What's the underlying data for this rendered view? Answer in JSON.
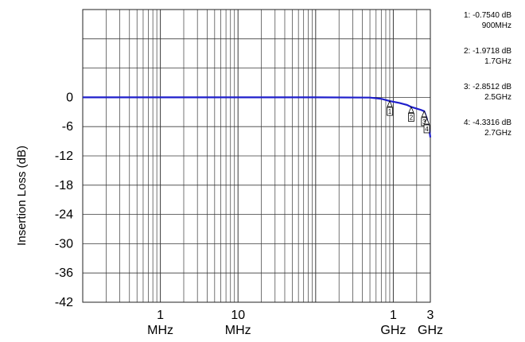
{
  "chart_data": {
    "type": "line",
    "title": "",
    "xlabel": "",
    "ylabel": "Insertion Loss (dB)",
    "xscale": "log",
    "xlim_hz": [
      100000,
      3000000000
    ],
    "ylim": [
      -42,
      18
    ],
    "grid": true,
    "line_color": "#1f1fcc",
    "y_ticks": [
      {
        "value": 0,
        "label": "0"
      },
      {
        "value": -6,
        "label": "-6"
      },
      {
        "value": -12,
        "label": "-12"
      },
      {
        "value": -18,
        "label": "-18"
      },
      {
        "value": -24,
        "label": "-24"
      },
      {
        "value": -30,
        "label": "-30"
      },
      {
        "value": -36,
        "label": "-36"
      },
      {
        "value": -42,
        "label": "-42"
      }
    ],
    "x_ticks": [
      {
        "value_hz": 1000000,
        "value_label": "1",
        "unit_label": "MHz"
      },
      {
        "value_hz": 10000000,
        "value_label": "10",
        "unit_label": "MHz"
      },
      {
        "value_hz": 1000000000,
        "value_label": "1",
        "unit_label": "GHz"
      },
      {
        "value_hz": 3000000000,
        "value_label": "3",
        "unit_label": "GHz"
      }
    ],
    "series": [
      {
        "x_hz": [
          100000,
          1000000,
          10000000,
          100000000,
          500000000,
          700000000,
          900000000,
          1200000000,
          1500000000,
          1700000000,
          2000000000,
          2300000000,
          2500000000,
          2700000000,
          2900000000,
          3000000000
        ],
        "y": [
          0,
          0,
          0,
          0,
          -0.05,
          -0.3,
          -0.754,
          -1.15,
          -1.55,
          -1.97,
          -2.3,
          -2.6,
          -2.85,
          -4.33,
          -6.5,
          -8.2
        ]
      }
    ],
    "markers": [
      {
        "id": "1",
        "x_hz": 900000000,
        "y": -0.754,
        "label_db": "1: -0.7540 dB",
        "label_freq": "900MHz"
      },
      {
        "id": "2",
        "x_hz": 1700000000,
        "y": -1.9718,
        "label_db": "2: -1.9718 dB",
        "label_freq": "1.7GHz"
      },
      {
        "id": "3",
        "x_hz": 2500000000,
        "y": -2.8512,
        "label_db": "3: -2.8512 dB",
        "label_freq": "2.5GHz"
      },
      {
        "id": "4",
        "x_hz": 2700000000,
        "y": -4.3316,
        "label_db": "4: -4.3316 dB",
        "label_freq": "2.7GHz"
      }
    ]
  }
}
